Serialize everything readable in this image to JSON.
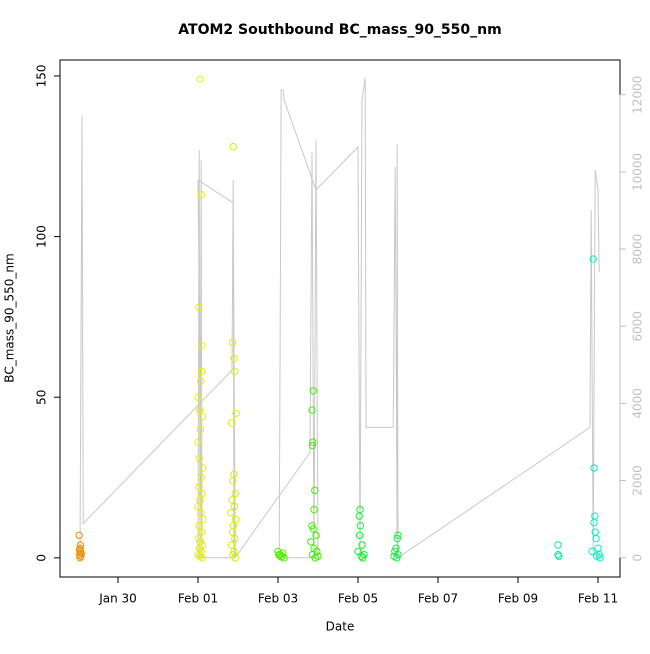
{
  "chart_data": {
    "type": "scatter",
    "title": "ATOM2 Southbound BC_mass_90_550_nm",
    "x_label": "Date",
    "y_label": "BC_mass_90_550_nm",
    "xlim": [
      28.55,
      42.55
    ],
    "ylim": [
      -5.96,
      154.96
    ],
    "y2lim": [
      -500,
      12900
    ],
    "xticks": [
      {
        "value": 30,
        "label": "Jan 30"
      },
      {
        "value": 32,
        "label": "Feb 01"
      },
      {
        "value": 34,
        "label": "Feb 03"
      },
      {
        "value": 36,
        "label": "Feb 05"
      },
      {
        "value": 38,
        "label": "Feb 07"
      },
      {
        "value": 40,
        "label": "Feb 09"
      },
      {
        "value": 42,
        "label": "Feb 11"
      }
    ],
    "yticks": [
      0,
      50,
      100,
      150
    ],
    "y2ticks": [
      0,
      2000,
      4000,
      6000,
      8000,
      10000,
      12000
    ],
    "y2_color": "#c0c0c0",
    "series": [
      {
        "color": "#c8c8c8",
        "axis": "y2",
        "mode": "line",
        "x": [
          29.05,
          29.1,
          29.13,
          32.85,
          32.88,
          32.9,
          32.0,
          32.03,
          32.05,
          32.08,
          32.1,
          32.0,
          32.88,
          32.93,
          34.8,
          34.85,
          34.9,
          34.95,
          35.0,
          34.03,
          34.08,
          34.13,
          34.15,
          34.95,
          36.0,
          36.05,
          36.1,
          36.18,
          36.2,
          36.88,
          36.93,
          36.98,
          36.98,
          37.0,
          41.8,
          41.83,
          41.88,
          41.93,
          42.0,
          42.03
        ],
        "values": [
          0,
          11455,
          883,
          4857,
          9792,
          0,
          0,
          10571,
          0,
          10312,
          0,
          9792,
          9195,
          0,
          2727,
          10519,
          0,
          10831,
          0,
          0,
          12130,
          12130,
          11870,
          9532,
          10649,
          0,
          11870,
          12442,
          3377,
          3377,
          10130,
          0,
          10701,
          0,
          3377,
          9013,
          0,
          10052,
          9532,
          7403
        ]
      },
      {
        "color": "#f08c00",
        "mode": "points",
        "x": [
          29.03,
          29.05,
          29.06,
          29.04,
          29.07,
          29.05,
          29.08,
          29.06,
          29.04
        ],
        "values": [
          7,
          3,
          2,
          1,
          0.5,
          0,
          1.5,
          4,
          2.5
        ]
      },
      {
        "color": "#e6f000",
        "mode": "points",
        "x": [
          32.05,
          32.08,
          32.02,
          32.1,
          32.09,
          32.07,
          32.0,
          32.04,
          32.11,
          32.06,
          32.0,
          32.03,
          32.12,
          32.08,
          32.02,
          32.1,
          32.05,
          32.0,
          32.07,
          32.12,
          32.03,
          32.09,
          32.01,
          32.06,
          32.11,
          32.04,
          32.08,
          32.0,
          32.05,
          32.1
        ],
        "values": [
          149,
          113,
          78,
          66,
          58,
          55,
          50,
          46,
          44,
          40,
          36,
          31,
          28,
          25,
          22,
          20,
          18,
          16,
          14,
          12,
          10,
          8,
          6,
          5,
          4,
          3,
          2,
          1,
          0.5,
          0
        ]
      },
      {
        "color": "#d4f000",
        "mode": "points",
        "x": [
          32.88,
          32.86,
          32.9,
          32.92,
          32.95,
          32.84,
          32.9,
          32.87,
          32.93,
          32.85,
          32.91,
          32.82,
          32.94,
          32.88,
          32.86,
          32.92,
          32.84,
          32.9,
          32.87,
          32.93
        ],
        "values": [
          128,
          67,
          62,
          58,
          45,
          42,
          26,
          24,
          20,
          18,
          16,
          14,
          12,
          10,
          8,
          6,
          4,
          2,
          1,
          0
        ]
      },
      {
        "color": "#50f000",
        "mode": "points",
        "x": [
          34.0,
          34.05,
          34.1,
          34.15,
          34.02,
          34.08,
          34.12,
          34.04
        ],
        "values": [
          2,
          1,
          0.5,
          0,
          1,
          0.3,
          1.5,
          0.8
        ]
      },
      {
        "color": "#40f000",
        "mode": "points",
        "x": [
          34.88,
          34.85,
          34.87,
          34.86,
          34.92,
          34.9,
          34.85,
          34.88,
          34.95,
          34.82,
          34.9,
          34.97,
          34.86,
          35.0,
          34.93
        ],
        "values": [
          52,
          46,
          36,
          35,
          21,
          15,
          10,
          9,
          7,
          5,
          3,
          2,
          1,
          0.5,
          0
        ]
      },
      {
        "color": "#10f030",
        "mode": "points",
        "x": [
          36.05,
          36.03,
          36.06,
          36.04,
          36.1,
          36.0,
          36.15,
          36.08,
          36.12
        ],
        "values": [
          15,
          13,
          10,
          7,
          4,
          2,
          1,
          0.5,
          0
        ]
      },
      {
        "color": "#10f040",
        "mode": "points",
        "x": [
          37.0,
          36.98,
          36.95,
          36.92,
          37.0,
          36.9,
          36.97
        ],
        "values": [
          7,
          6,
          3,
          2,
          1,
          0.5,
          0
        ]
      },
      {
        "color": "#00f0a0",
        "mode": "points",
        "x": [
          41.0,
          41.0,
          41.02
        ],
        "values": [
          4,
          1,
          0.5
        ]
      },
      {
        "color": "#00f0c0",
        "mode": "points",
        "x": [
          41.88,
          41.9,
          41.92,
          41.9,
          41.93,
          41.95,
          42.0,
          41.85,
          42.03,
          41.97,
          42.05
        ],
        "values": [
          93,
          28,
          13,
          11,
          8,
          6,
          3,
          2,
          1,
          0.5,
          0
        ]
      }
    ]
  }
}
